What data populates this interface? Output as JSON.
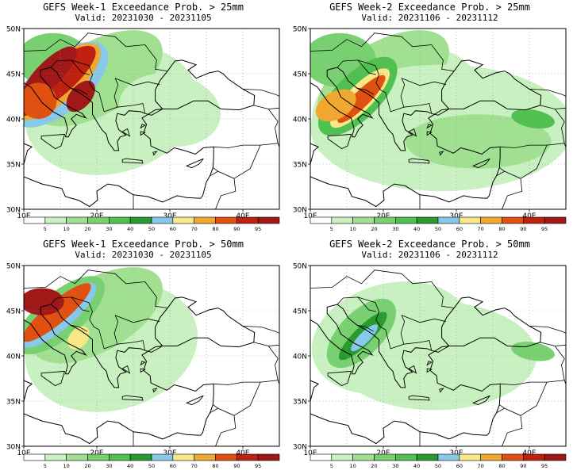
{
  "panels": [
    {
      "title": "GEFS Week-1 Exceedance Prob. > 25mm",
      "valid": "Valid: 20231030 - 20231105",
      "intensity": "high"
    },
    {
      "title": "GEFS Week-2 Exceedance Prob. > 25mm",
      "valid": "Valid: 20231106 - 20231112",
      "intensity": "medium"
    },
    {
      "title": "GEFS Week-1 Exceedance Prob. > 50mm",
      "valid": "Valid: 20231030 - 20231105",
      "intensity": "medium-high"
    },
    {
      "title": "GEFS Week-2 Exceedance Prob. > 50mm",
      "valid": "Valid: 20231106 - 20231112",
      "intensity": "low"
    }
  ],
  "axes": {
    "lat_labels": [
      "50N",
      "45N",
      "40N",
      "35N",
      "30N"
    ],
    "lon_labels": [
      "10E",
      "20E",
      "30E",
      "40E"
    ]
  },
  "colorbar": {
    "labels": [
      "5",
      "10",
      "20",
      "30",
      "40",
      "50",
      "60",
      "70",
      "80",
      "90",
      "95"
    ],
    "colors": [
      "#ffffff",
      "#c8f0c0",
      "#a0e090",
      "#78d070",
      "#50c050",
      "#289a30",
      "#88c8e8",
      "#f8e888",
      "#f0a830",
      "#e05010",
      "#c02010",
      "#a01818"
    ]
  }
}
